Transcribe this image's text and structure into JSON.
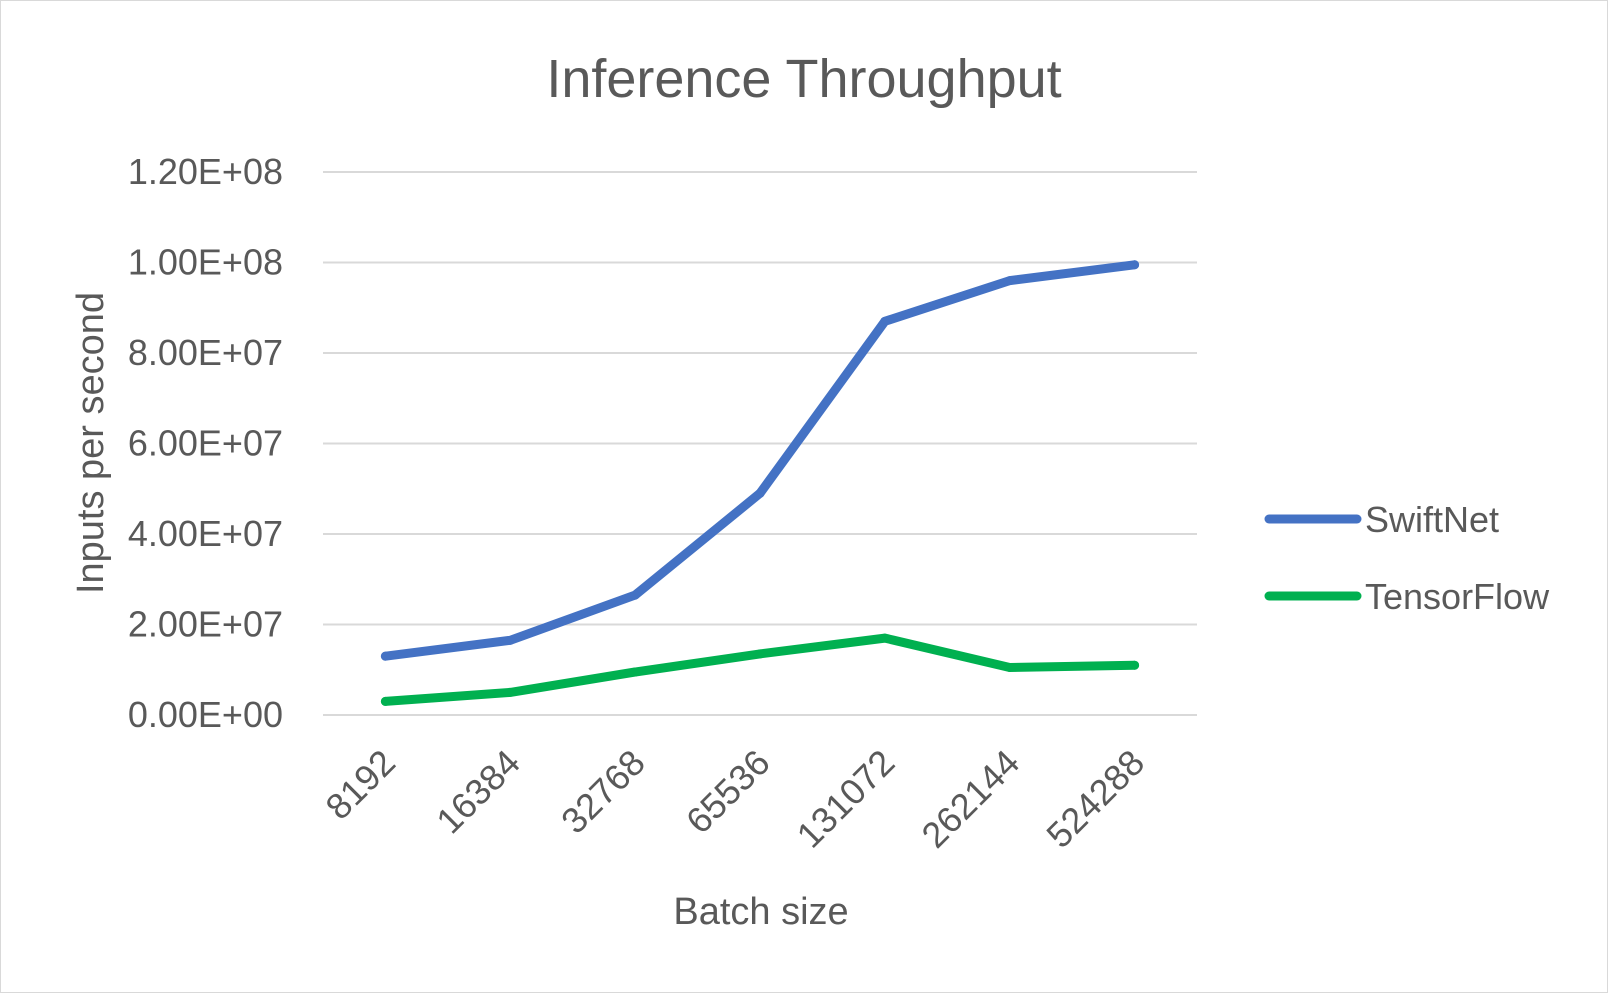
{
  "chart_data": {
    "type": "line",
    "title": "Inference Throughput",
    "xlabel": "Batch size",
    "ylabel": "Inputs per second",
    "categories": [
      "8192",
      "16384",
      "32768",
      "65536",
      "131072",
      "262144",
      "524288"
    ],
    "ylim": [
      0,
      120000000
    ],
    "yticks": [
      0,
      20000000,
      40000000,
      60000000,
      80000000,
      100000000,
      120000000
    ],
    "ytick_labels": [
      "0.00E+00",
      "2.00E+07",
      "4.00E+07",
      "6.00E+07",
      "8.00E+07",
      "1.00E+08",
      "1.20E+08"
    ],
    "grid": true,
    "legend_position": "right",
    "series": [
      {
        "name": "SwiftNet",
        "color": "#4472C4",
        "values": [
          13000000,
          16500000,
          26500000,
          49000000,
          87000000,
          96000000,
          99500000
        ]
      },
      {
        "name": "TensorFlow",
        "color": "#00B050",
        "values": [
          3000000,
          5000000,
          9500000,
          13500000,
          17000000,
          10500000,
          11000000
        ]
      }
    ]
  }
}
